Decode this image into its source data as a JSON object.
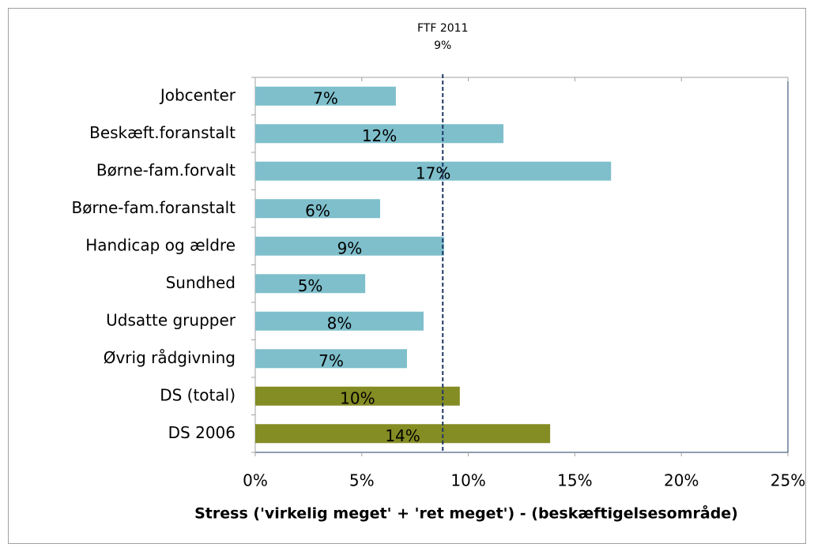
{
  "chart_data": {
    "type": "barh",
    "xlabel": "Stress ('virkelig meget' + 'ret meget') - (beskæftigelsesområde)",
    "categories": [
      "Jobcenter",
      "Beskæft.foranstalt",
      "Børne-fam.forvalt",
      "Børne-fam.foranstalt",
      "Handicap og ældre",
      "Sundhed",
      "Udsatte grupper",
      "Øvrig rådgivning",
      "DS (total)",
      "DS 2006"
    ],
    "values": [
      6.6,
      11.65,
      16.7,
      5.86,
      8.86,
      5.16,
      7.9,
      7.12,
      9.6,
      13.84
    ],
    "value_labels": [
      "7%",
      "12%",
      "17%",
      "6%",
      "9%",
      "5%",
      "8%",
      "7%",
      "10%",
      "14%"
    ],
    "colors": [
      "#7fbfcc",
      "#7fbfcc",
      "#7fbfcc",
      "#7fbfcc",
      "#7fbfcc",
      "#7fbfcc",
      "#7fbfcc",
      "#7fbfcc",
      "#848c24",
      "#848c24"
    ],
    "xlim": [
      0,
      25
    ],
    "xticks": [
      {
        "value": 0,
        "label": "0%"
      },
      {
        "value": 5,
        "label": "5%"
      },
      {
        "value": 10,
        "label": "10%"
      },
      {
        "value": 15,
        "label": "15%"
      },
      {
        "value": 20,
        "label": "20%"
      },
      {
        "value": 25,
        "label": "25%"
      }
    ],
    "reference_line": {
      "label": "FTF 2011",
      "value": 8.8,
      "value_label": "9%",
      "color": "#1f3864"
    }
  }
}
